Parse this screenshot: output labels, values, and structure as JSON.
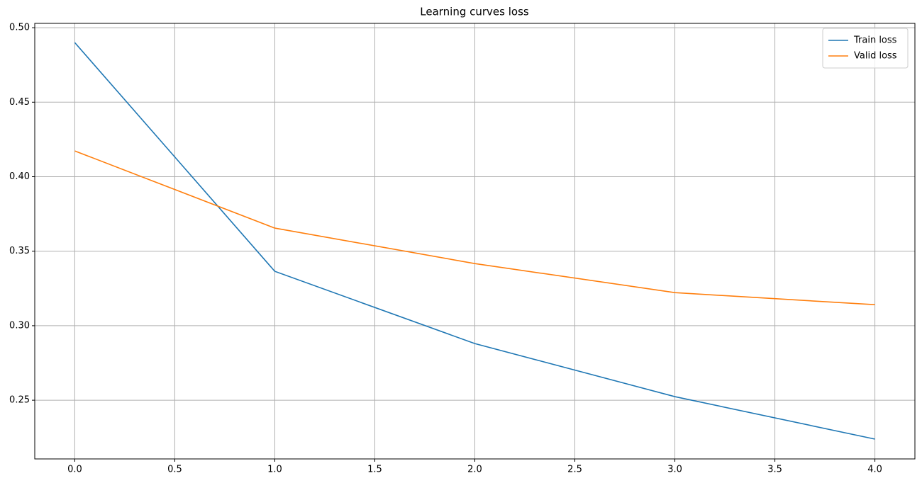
{
  "chart_data": {
    "type": "line",
    "title": "Learning curves loss",
    "x": [
      0,
      1,
      2,
      3,
      4
    ],
    "series": [
      {
        "name": "Train loss",
        "color": "#1f77b4",
        "values": [
          0.49,
          0.3365,
          0.288,
          0.2524,
          0.2239
        ]
      },
      {
        "name": "Valid loss",
        "color": "#ff7f0e",
        "values": [
          0.4173,
          0.3655,
          0.3417,
          0.3222,
          0.3141
        ]
      }
    ],
    "xlim": [
      -0.2,
      4.2
    ],
    "ylim": [
      0.2106,
      0.5029
    ],
    "xticks": [
      {
        "value": 0,
        "label": "0.0"
      },
      0.5,
      {
        "value": 1,
        "label": "1.0"
      },
      1.5,
      {
        "value": 2,
        "label": "2.0"
      },
      2.5,
      {
        "value": 3,
        "label": "3.0"
      },
      3.5,
      {
        "value": 4,
        "label": "4.0"
      }
    ],
    "yticks": [
      0.25,
      {
        "value": 0.3,
        "label": "0.30"
      },
      0.35,
      {
        "value": 0.4,
        "label": "0.40"
      },
      0.45,
      {
        "value": 0.5,
        "label": "0.50"
      }
    ],
    "grid": true,
    "legend": "upper right"
  }
}
